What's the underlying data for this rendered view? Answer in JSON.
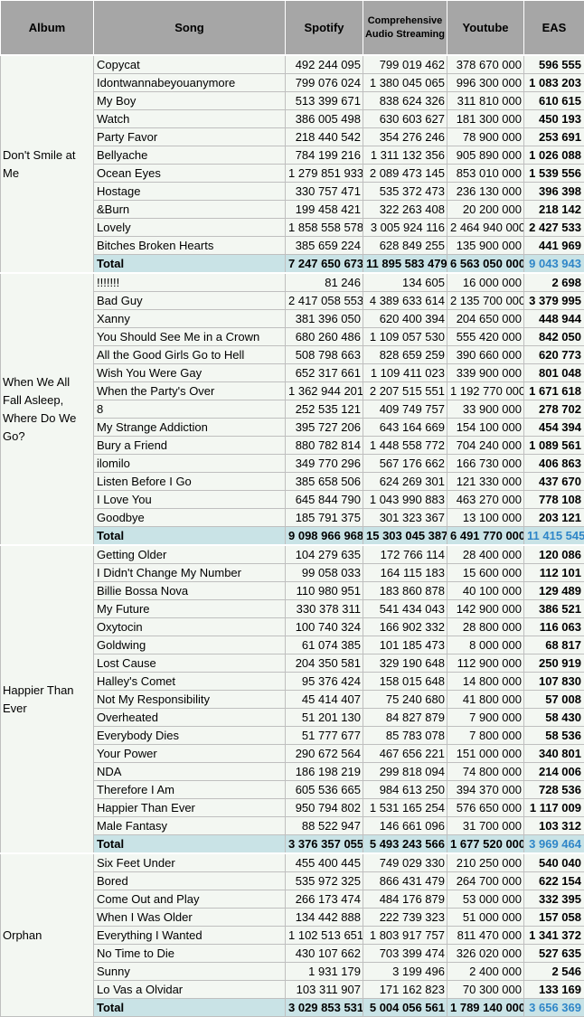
{
  "headers": {
    "album": "Album",
    "song": "Song",
    "spotify": "Spotify",
    "cas": "Comprehensive Audio Streaming",
    "youtube": "Youtube",
    "eas": "EAS"
  },
  "total_label": "Total",
  "albums": [
    {
      "name": "Don't Smile at Me",
      "songs": [
        {
          "song": "Copycat",
          "spotify": "492 244 095",
          "cas": "799 019 462",
          "youtube": "378 670 000",
          "eas": "596 555"
        },
        {
          "song": "Idontwannabeyouanymore",
          "spotify": "799 076 024",
          "cas": "1 380 045 065",
          "youtube": "996 300 000",
          "eas": "1 083 203"
        },
        {
          "song": "My Boy",
          "spotify": "513 399 671",
          "cas": "838 624 326",
          "youtube": "311 810 000",
          "eas": "610 615"
        },
        {
          "song": "Watch",
          "spotify": "386 005 498",
          "cas": "630 603 627",
          "youtube": "181 300 000",
          "eas": "450 193"
        },
        {
          "song": "Party Favor",
          "spotify": "218 440 542",
          "cas": "354 276 246",
          "youtube": "78 900 000",
          "eas": "253 691"
        },
        {
          "song": "Bellyache",
          "spotify": "784 199 216",
          "cas": "1 311 132 356",
          "youtube": "905 890 000",
          "eas": "1 026 088"
        },
        {
          "song": "Ocean Eyes",
          "spotify": "1 279 851 933",
          "cas": "2 089 473 145",
          "youtube": "853 010 000",
          "eas": "1 539 556"
        },
        {
          "song": "Hostage",
          "spotify": "330 757 471",
          "cas": "535 372 473",
          "youtube": "236 130 000",
          "eas": "396 398"
        },
        {
          "song": "&Burn",
          "spotify": "199 458 421",
          "cas": "322 263 408",
          "youtube": "20 200 000",
          "eas": "218 142"
        },
        {
          "song": "Lovely",
          "spotify": "1 858 558 578",
          "cas": "3 005 924 116",
          "youtube": "2 464 940 000",
          "eas": "2 427 533"
        },
        {
          "song": "Bitches Broken Hearts",
          "spotify": "385 659 224",
          "cas": "628 849 255",
          "youtube": "135 900 000",
          "eas": "441 969"
        }
      ],
      "total": {
        "spotify": "7 247 650 673",
        "cas": "11 895 583 479",
        "youtube": "6 563 050 000",
        "eas": "9 043 943"
      }
    },
    {
      "name": "When We All Fall Asleep, Where Do We Go?",
      "songs": [
        {
          "song": "!!!!!!!",
          "spotify": "81 246",
          "cas": "134 605",
          "youtube": "16 000 000",
          "eas": "2 698"
        },
        {
          "song": "Bad Guy",
          "spotify": "2 417 058 553",
          "cas": "4 389 633 614",
          "youtube": "2 135 700 000",
          "eas": "3 379 995"
        },
        {
          "song": "Xanny",
          "spotify": "381 396 050",
          "cas": "620 400 394",
          "youtube": "204 650 000",
          "eas": "448 944"
        },
        {
          "song": "You Should See Me in a Crown",
          "spotify": "680 260 486",
          "cas": "1 109 057 530",
          "youtube": "555 420 000",
          "eas": "842 050"
        },
        {
          "song": "All the Good Girls Go to Hell",
          "spotify": "508 798 663",
          "cas": "828 659 259",
          "youtube": "390 660 000",
          "eas": "620 773"
        },
        {
          "song": "Wish You Were Gay",
          "spotify": "652 317 661",
          "cas": "1 109 411 023",
          "youtube": "339 900 000",
          "eas": "801 048"
        },
        {
          "song": "When the Party's Over",
          "spotify": "1 362 944 201",
          "cas": "2 207 515 551",
          "youtube": "1 192 770 000",
          "eas": "1 671 618"
        },
        {
          "song": "8",
          "spotify": "252 535 121",
          "cas": "409 749 757",
          "youtube": "33 900 000",
          "eas": "278 702"
        },
        {
          "song": "My Strange Addiction",
          "spotify": "395 727 206",
          "cas": "643 164 669",
          "youtube": "154 100 000",
          "eas": "454 394"
        },
        {
          "song": "Bury a Friend",
          "spotify": "880 782 814",
          "cas": "1 448 558 772",
          "youtube": "704 240 000",
          "eas": "1 089 561"
        },
        {
          "song": "ilomilo",
          "spotify": "349 770 296",
          "cas": "567 176 662",
          "youtube": "166 730 000",
          "eas": "406 863"
        },
        {
          "song": "Listen Before I Go",
          "spotify": "385 658 506",
          "cas": "624 269 301",
          "youtube": "121 330 000",
          "eas": "437 670"
        },
        {
          "song": "I Love You",
          "spotify": "645 844 790",
          "cas": "1 043 990 883",
          "youtube": "463 270 000",
          "eas": "778 108"
        },
        {
          "song": "Goodbye",
          "spotify": "185 791 375",
          "cas": "301 323 367",
          "youtube": "13 100 000",
          "eas": "203 121"
        }
      ],
      "total": {
        "spotify": "9 098 966 968",
        "cas": "15 303 045 387",
        "youtube": "6 491 770 000",
        "eas": "11 415 545"
      }
    },
    {
      "name": "Happier Than Ever",
      "songs": [
        {
          "song": "Getting Older",
          "spotify": "104 279 635",
          "cas": "172 766 114",
          "youtube": "28 400 000",
          "eas": "120 086"
        },
        {
          "song": "I Didn't Change My Number",
          "spotify": "99 058 033",
          "cas": "164 115 183",
          "youtube": "15 600 000",
          "eas": "112 101"
        },
        {
          "song": "Billie Bossa Nova",
          "spotify": "110 980 951",
          "cas": "183 860 878",
          "youtube": "40 100 000",
          "eas": "129 489"
        },
        {
          "song": "My Future",
          "spotify": "330 378 311",
          "cas": "541 434 043",
          "youtube": "142 900 000",
          "eas": "386 521"
        },
        {
          "song": "Oxytocin",
          "spotify": "100 740 324",
          "cas": "166 902 332",
          "youtube": "28 800 000",
          "eas": "116 063"
        },
        {
          "song": "Goldwing",
          "spotify": "61 074 385",
          "cas": "101 185 473",
          "youtube": "8 000 000",
          "eas": "68 817"
        },
        {
          "song": "Lost Cause",
          "spotify": "204 350 581",
          "cas": "329 190 648",
          "youtube": "112 900 000",
          "eas": "250 919"
        },
        {
          "song": "Halley's Comet",
          "spotify": "95 376 424",
          "cas": "158 015 648",
          "youtube": "14 800 000",
          "eas": "107 830"
        },
        {
          "song": "Not My Responsibility",
          "spotify": "45 414 407",
          "cas": "75 240 680",
          "youtube": "41 800 000",
          "eas": "57 008"
        },
        {
          "song": "Overheated",
          "spotify": "51 201 130",
          "cas": "84 827 879",
          "youtube": "7 900 000",
          "eas": "58 430"
        },
        {
          "song": "Everybody Dies",
          "spotify": "51 777 677",
          "cas": "85 783 078",
          "youtube": "7 800 000",
          "eas": "58 536"
        },
        {
          "song": "Your Power",
          "spotify": "290 672 564",
          "cas": "467 656 221",
          "youtube": "151 000 000",
          "eas": "340 801"
        },
        {
          "song": "NDA",
          "spotify": "186 198 219",
          "cas": "299 818 094",
          "youtube": "74 800 000",
          "eas": "214 006"
        },
        {
          "song": "Therefore I Am",
          "spotify": "605 536 665",
          "cas": "984 613 250",
          "youtube": "394 370 000",
          "eas": "728 536"
        },
        {
          "song": "Happier Than Ever",
          "spotify": "950 794 802",
          "cas": "1 531 165 254",
          "youtube": "576 650 000",
          "eas": "1 117 009"
        },
        {
          "song": "Male Fantasy",
          "spotify": "88 522 947",
          "cas": "146 661 096",
          "youtube": "31 700 000",
          "eas": "103 312"
        }
      ],
      "total": {
        "spotify": "3 376 357 055",
        "cas": "5 493 243 566",
        "youtube": "1 677 520 000",
        "eas": "3 969 464"
      }
    },
    {
      "name": "Orphan",
      "songs": [
        {
          "song": "Six Feet Under",
          "spotify": "455 400 445",
          "cas": "749 029 330",
          "youtube": "210 250 000",
          "eas": "540 040"
        },
        {
          "song": "Bored",
          "spotify": "535 972 325",
          "cas": "866 431 479",
          "youtube": "264 700 000",
          "eas": "622 154"
        },
        {
          "song": "Come Out and Play",
          "spotify": "266 173 474",
          "cas": "484 176 879",
          "youtube": "53 000 000",
          "eas": "332 395"
        },
        {
          "song": "When I Was Older",
          "spotify": "134 442 888",
          "cas": "222 739 323",
          "youtube": "51 000 000",
          "eas": "157 058"
        },
        {
          "song": "Everything I Wanted",
          "spotify": "1 102 513 651",
          "cas": "1 803 917 757",
          "youtube": "811 470 000",
          "eas": "1 341 372"
        },
        {
          "song": "No Time to Die",
          "spotify": "430 107 662",
          "cas": "703 399 474",
          "youtube": "326 020 000",
          "eas": "527 635"
        },
        {
          "song": "Sunny",
          "spotify": "1 931 179",
          "cas": "3 199 496",
          "youtube": "2 400 000",
          "eas": "2 546"
        },
        {
          "song": "Lo Vas a Olvidar",
          "spotify": "103 311 907",
          "cas": "171 162 823",
          "youtube": "70 300 000",
          "eas": "133 169"
        }
      ],
      "total": {
        "spotify": "3 029 853 531",
        "cas": "5 004 056 561",
        "youtube": "1 789 140 000",
        "eas": "3 656 369"
      }
    }
  ]
}
